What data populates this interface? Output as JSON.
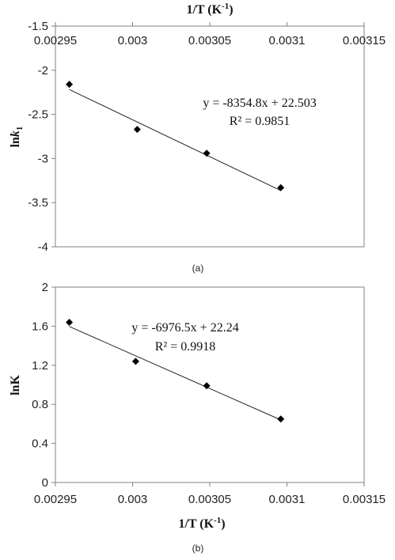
{
  "chart_data": [
    {
      "type": "scatter",
      "panel_label": "(a)",
      "xlabel": "1/T (K⁻¹)",
      "ylabel": "lnk₁",
      "xlim": [
        0.00295,
        0.00315
      ],
      "ylim": [
        -4,
        -1.5
      ],
      "x_ticks": [
        "0.00295",
        "0.003",
        "0.00305",
        "0.0031",
        "0.00315"
      ],
      "y_ticks": [
        "-1.5",
        "-2",
        "-2.5",
        "-3",
        "-3.5",
        "-4"
      ],
      "x_axis_position": "top",
      "grid": false,
      "series": [
        {
          "x": [
            0.002959,
            0.003003,
            0.003048,
            0.003096
          ],
          "y": [
            -2.16,
            -2.67,
            -2.94,
            -3.33
          ]
        }
      ],
      "trendline": {
        "slope": -8354.8,
        "intercept": 22.503,
        "x_range": [
          0.002959,
          0.003096
        ]
      },
      "equation": "y = -8354.8x + 22.503",
      "r_squared": "R² = 0.9851"
    },
    {
      "type": "scatter",
      "panel_label": "(b)",
      "xlabel": "1/T (K⁻¹)",
      "ylabel": "lnK",
      "xlim": [
        0.00295,
        0.00315
      ],
      "ylim": [
        0,
        2
      ],
      "x_ticks": [
        "0.00295",
        "0.003",
        "0.00305",
        "0.0031",
        "0.00315"
      ],
      "y_ticks": [
        "2",
        "1.6",
        "1.2",
        "0.8",
        "0.4",
        "0"
      ],
      "x_axis_position": "bottom",
      "grid": false,
      "series": [
        {
          "x": [
            0.002959,
            0.003002,
            0.003048,
            0.003096
          ],
          "y": [
            1.64,
            1.24,
            0.99,
            0.65
          ]
        }
      ],
      "trendline": {
        "slope": -6976.5,
        "intercept": 22.24,
        "x_range": [
          0.002959,
          0.003096
        ]
      },
      "equation": "y = -6976.5x + 22.24",
      "r_squared": "R² = 0.9918"
    }
  ]
}
